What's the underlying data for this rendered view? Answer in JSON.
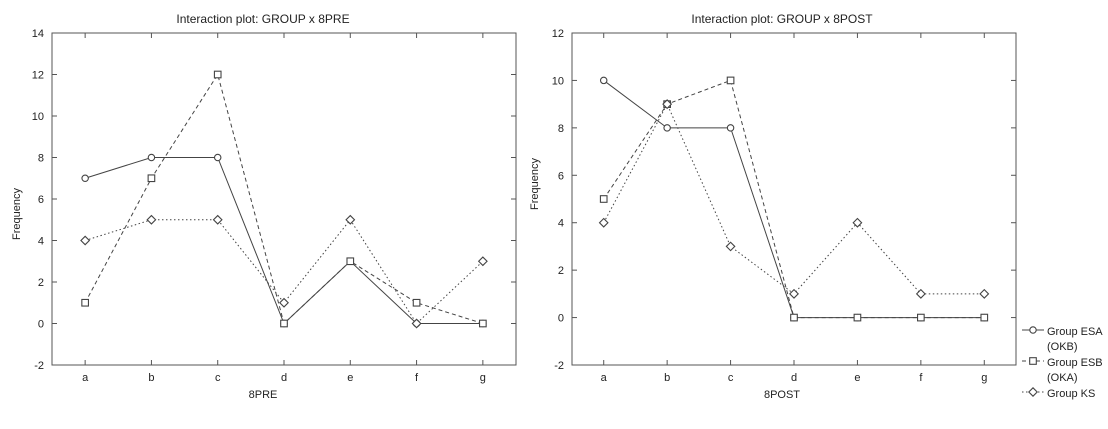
{
  "chart_data": [
    {
      "type": "line",
      "title": "Interaction plot: GROUP x 8PRE",
      "xlabel": "8PRE",
      "ylabel": "Frequency",
      "categories": [
        "a",
        "b",
        "c",
        "d",
        "e",
        "f",
        "g"
      ],
      "ylim": [
        -2,
        14
      ],
      "yticks": [
        "-2",
        "0",
        "2",
        "4",
        "6",
        "8",
        "10",
        "12",
        "14"
      ],
      "grid": false,
      "series": [
        {
          "name": "Group ESA (OKB)",
          "marker": "circle",
          "dash": "solid",
          "values": [
            7,
            8,
            8,
            0,
            3,
            0,
            0
          ]
        },
        {
          "name": "Group ESB (OKA)",
          "marker": "square",
          "dash": "dashed",
          "values": [
            1,
            7,
            12,
            0,
            3,
            1,
            0
          ]
        },
        {
          "name": "Group KS",
          "marker": "diamond",
          "dash": "dotted",
          "values": [
            4,
            5,
            5,
            1,
            5,
            0,
            3
          ]
        }
      ]
    },
    {
      "type": "line",
      "title": "Interaction plot: GROUP x 8POST",
      "xlabel": "8POST",
      "ylabel": "Frequency",
      "categories": [
        "a",
        "b",
        "c",
        "d",
        "e",
        "f",
        "g"
      ],
      "ylim": [
        -2,
        12
      ],
      "yticks": [
        "-2",
        "0",
        "2",
        "4",
        "6",
        "8",
        "10",
        "12"
      ],
      "grid": false,
      "series": [
        {
          "name": "Group ESA (OKB)",
          "marker": "circle",
          "dash": "solid",
          "values": [
            10,
            8,
            8,
            0,
            0,
            0,
            0
          ]
        },
        {
          "name": "Group ESB (OKA)",
          "marker": "square",
          "dash": "dashed",
          "values": [
            5,
            9,
            10,
            0,
            0,
            0,
            0
          ]
        },
        {
          "name": "Group KS",
          "marker": "diamond",
          "dash": "dotted",
          "values": [
            4,
            9,
            3,
            1,
            4,
            1,
            1
          ]
        }
      ]
    }
  ],
  "legend": {
    "placement": "right",
    "items": [
      {
        "lines": [
          "Group ESA",
          "(OKB)"
        ],
        "marker": "circle",
        "dash": "solid"
      },
      {
        "lines": [
          "Group ESB",
          "(OKA)"
        ],
        "marker": "square",
        "dash": "dashed"
      },
      {
        "lines": [
          "Group KS"
        ],
        "marker": "diamond",
        "dash": "dotted"
      }
    ]
  },
  "colors": {
    "line": "#444444",
    "frame": "#555555",
    "background": "#ffffff"
  }
}
